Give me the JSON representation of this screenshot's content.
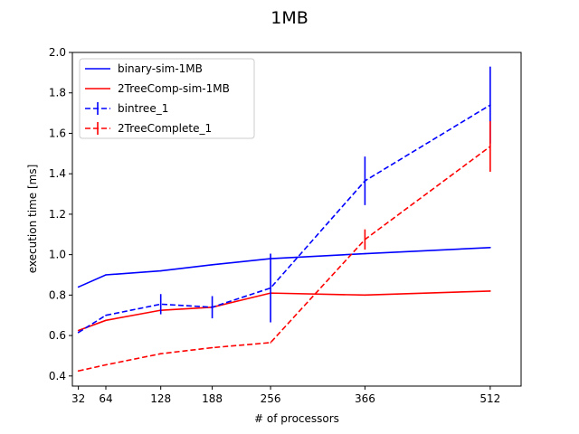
{
  "chart_data": {
    "type": "line",
    "title": "1MB",
    "xlabel": "# of processors",
    "ylabel": "execution time [ms]",
    "xlim": [
      25,
      548
    ],
    "ylim": [
      0.35,
      2.0
    ],
    "x_ticks": [
      32,
      64,
      128,
      188,
      256,
      366,
      512
    ],
    "x_tick_labels": [
      "32",
      "64",
      "128",
      "188",
      "256",
      "366",
      "512"
    ],
    "y_ticks": [
      0.4,
      0.6,
      0.8,
      1.0,
      1.2,
      1.4,
      1.6,
      1.8,
      2.0
    ],
    "y_tick_labels": [
      "0.4",
      "0.6",
      "0.8",
      "1.0",
      "1.2",
      "1.4",
      "1.6",
      "1.8",
      "2.0"
    ],
    "grid": false,
    "legend_position": "top-left",
    "series": [
      {
        "name": "binary-sim-1MB",
        "color": "#0000ff",
        "style": "solid",
        "x": [
          32,
          64,
          128,
          188,
          256,
          366,
          512
        ],
        "y": [
          0.84,
          0.9,
          0.92,
          0.95,
          0.98,
          1.005,
          1.035
        ]
      },
      {
        "name": "2TreeComp-sim-1MB",
        "color": "#ff0000",
        "style": "solid",
        "x": [
          32,
          64,
          128,
          188,
          256,
          366,
          512
        ],
        "y": [
          0.625,
          0.675,
          0.725,
          0.74,
          0.81,
          0.8,
          0.82
        ]
      },
      {
        "name": "bintree_1",
        "color": "#0000ff",
        "style": "dashed",
        "x": [
          32,
          64,
          128,
          188,
          256,
          366,
          512
        ],
        "y": [
          0.615,
          0.7,
          0.755,
          0.74,
          0.835,
          1.365,
          1.74
        ],
        "error": [
          0.0,
          0.0,
          0.05,
          0.055,
          0.17,
          0.12,
          0.19
        ]
      },
      {
        "name": "2TreeComplete_1",
        "color": "#ff0000",
        "style": "dashed",
        "x": [
          32,
          64,
          128,
          188,
          256,
          366,
          512
        ],
        "y": [
          0.425,
          0.455,
          0.51,
          0.54,
          0.565,
          1.075,
          1.535
        ],
        "error": [
          0.0,
          0.0,
          0.0,
          0.0,
          0.0,
          0.05,
          0.125
        ]
      }
    ]
  }
}
